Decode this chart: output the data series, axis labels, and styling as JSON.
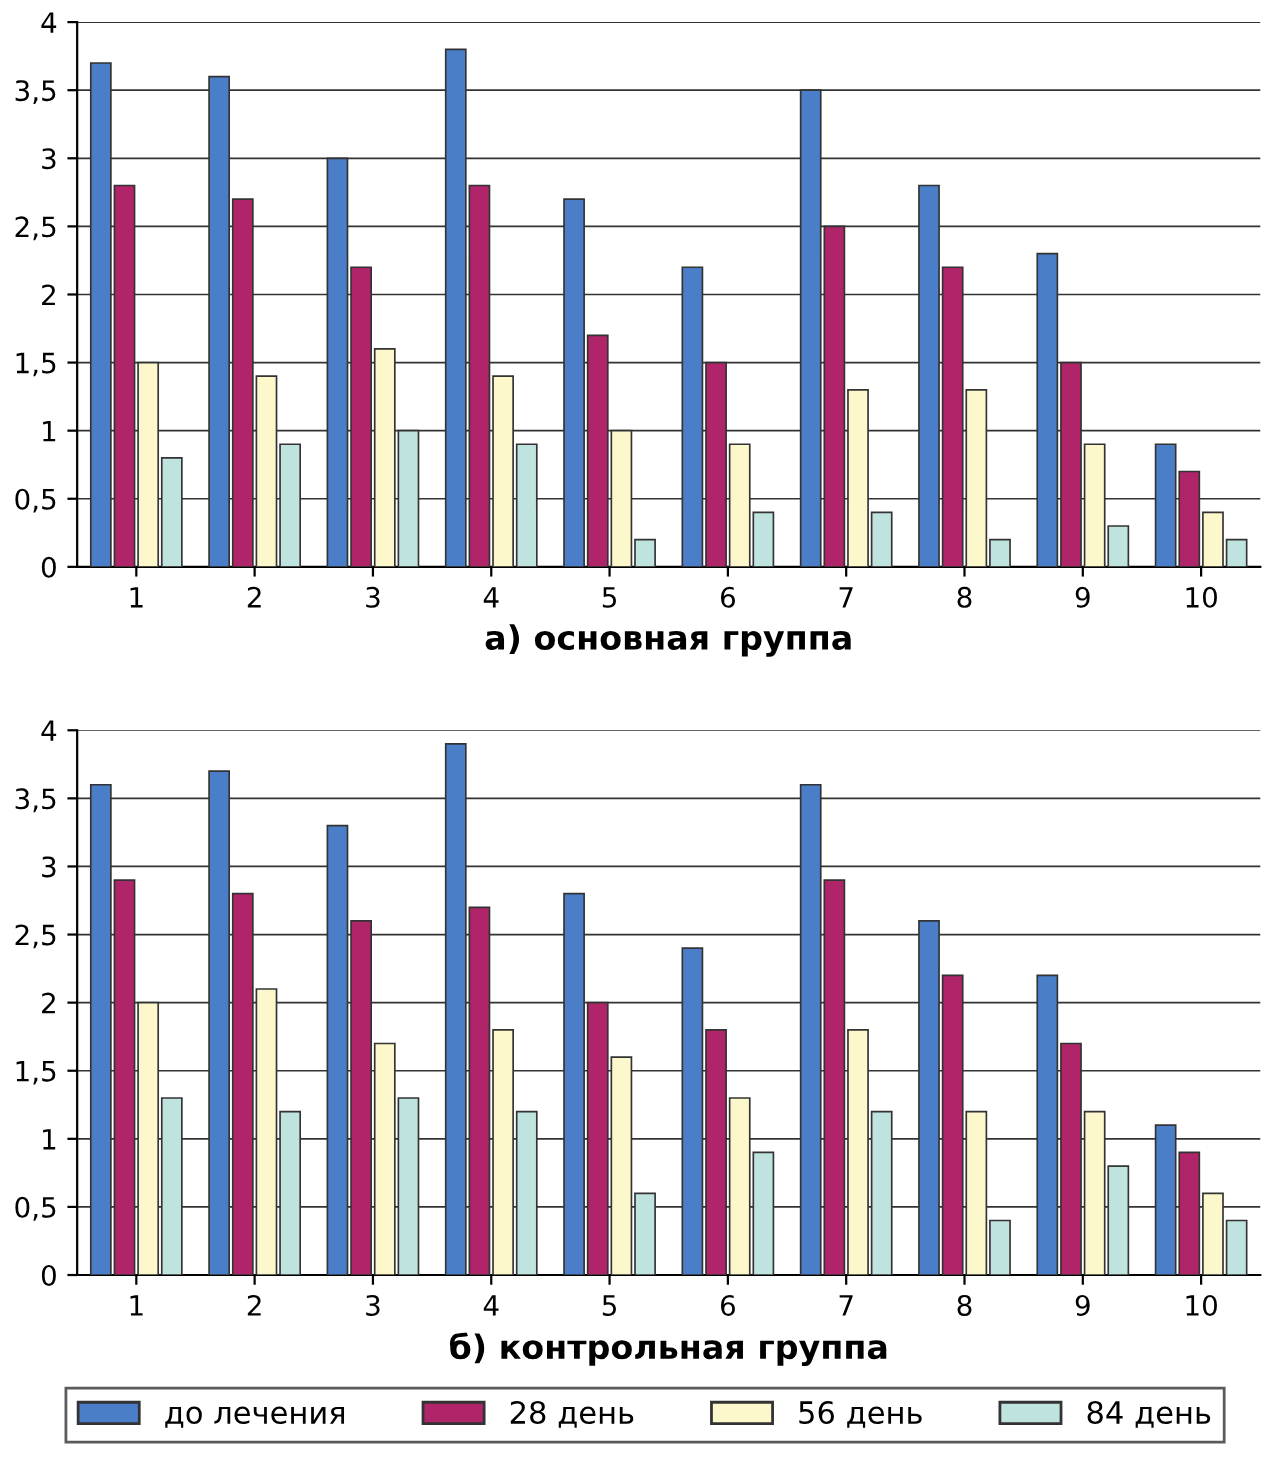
{
  "chart_data": [
    {
      "type": "bar",
      "xlabel": "а) основная группа",
      "categories": [
        "1",
        "2",
        "3",
        "4",
        "5",
        "6",
        "7",
        "8",
        "9",
        "10"
      ],
      "series": [
        {
          "color": "#4a7ec8",
          "values": [
            3.7,
            3.6,
            3.0,
            3.8,
            2.7,
            2.2,
            3.5,
            2.8,
            2.3,
            0.9
          ]
        },
        {
          "color": "#b0246a",
          "values": [
            2.8,
            2.7,
            2.2,
            2.8,
            1.7,
            1.5,
            2.5,
            2.2,
            1.5,
            0.7
          ]
        },
        {
          "color": "#fdf8cc",
          "values": [
            1.5,
            1.4,
            1.6,
            1.4,
            1.0,
            0.9,
            1.3,
            1.3,
            0.9,
            0.4
          ]
        },
        {
          "color": "#bfe3df",
          "values": [
            0.8,
            0.9,
            1.0,
            0.9,
            0.2,
            0.4,
            0.4,
            0.2,
            0.3,
            0.2
          ]
        }
      ],
      "ylim": [
        0,
        4
      ],
      "yticks": [
        0,
        {
          "value": 0.5,
          "label": "0,5"
        },
        1,
        {
          "value": 1.5,
          "label": "1,5"
        },
        2,
        {
          "value": 2.5,
          "label": "2,5"
        },
        3,
        {
          "value": 3.5,
          "label": "3,5"
        },
        4
      ],
      "grid": "y"
    },
    {
      "type": "bar",
      "xlabel": "б) контрольная группа",
      "categories": [
        "1",
        "2",
        "3",
        "4",
        "5",
        "6",
        "7",
        "8",
        "9",
        "10"
      ],
      "series": [
        {
          "name": "до лечения",
          "color": "#4a7ec8",
          "values": [
            3.6,
            3.7,
            3.3,
            3.9,
            2.8,
            2.4,
            3.6,
            2.6,
            2.2,
            1.1
          ]
        },
        {
          "name": "28 день",
          "color": "#b0246a",
          "values": [
            2.9,
            2.8,
            2.6,
            2.7,
            2.0,
            1.8,
            2.9,
            2.2,
            1.7,
            0.9
          ]
        },
        {
          "name": "56 день",
          "color": "#fdf8cc",
          "values": [
            2.0,
            2.1,
            1.7,
            1.8,
            1.6,
            1.3,
            1.8,
            1.2,
            1.2,
            0.6
          ]
        },
        {
          "name": "84 день",
          "color": "#bfe3df",
          "values": [
            1.3,
            1.2,
            1.3,
            1.2,
            0.6,
            0.9,
            1.2,
            0.4,
            0.8,
            0.4
          ]
        }
      ],
      "ylim": [
        0,
        4
      ],
      "yticks": [
        0,
        {
          "value": 0.5,
          "label": "0,5"
        },
        1,
        {
          "value": 1.5,
          "label": "1,5"
        },
        2,
        {
          "value": 2.5,
          "label": "2,5"
        },
        3,
        {
          "value": 3.5,
          "label": "3,5"
        },
        4
      ],
      "grid": "y",
      "legend": "bottom"
    }
  ]
}
